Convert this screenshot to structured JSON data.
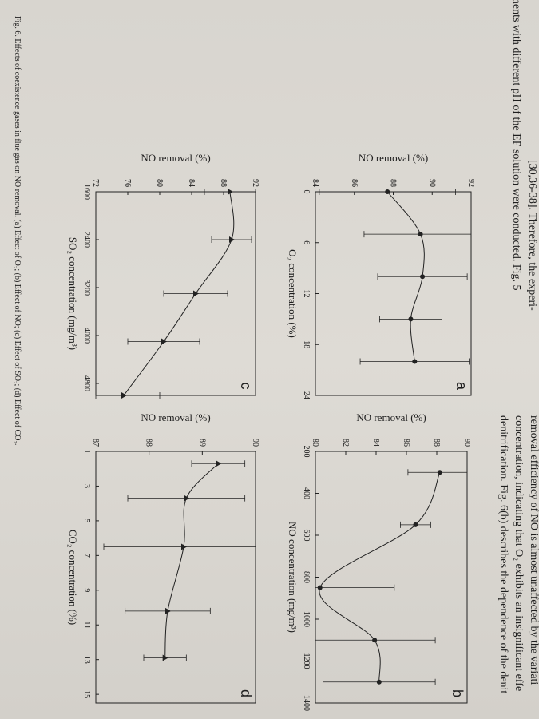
{
  "text_lines": {
    "left": [
      "[30,36-38]. Therefore, the experi-",
      "ments with different pH of the EF solution were conducted. Fig. 5"
    ],
    "right": [
      "removal efficiency of NO is almost unaffected by the variati",
      "concentration, indicating that O₂ exhibits an insignificant effe",
      "denitrification. Fig. 6(b) describes the dependence of the denit"
    ]
  },
  "chart_data": [
    {
      "type": "line",
      "panel": "a",
      "x_label": "O₂ concentration (%)",
      "y_label": "NO removal (%)",
      "marker": "circle",
      "x": [
        0,
        5,
        10,
        15,
        20
      ],
      "values": [
        87.7,
        89.4,
        89.5,
        88.9,
        89.1
      ],
      "errors": [
        3.5,
        2.9,
        2.3,
        1.6,
        2.8
      ],
      "xlim": [
        0,
        24
      ],
      "xticks": [
        0,
        6,
        12,
        18,
        24
      ],
      "ylim": [
        84,
        92
      ],
      "yticks": [
        84,
        86,
        88,
        90,
        92
      ]
    },
    {
      "type": "line",
      "panel": "b",
      "x_label": "NO concentration (mg/m³)",
      "y_label": "NO removal (%)",
      "marker": "circle",
      "x": [
        300,
        550,
        850,
        1100,
        1300
      ],
      "values": [
        88.2,
        86.6,
        80.3,
        83.9,
        84.2
      ],
      "errors": [
        2.1,
        1,
        4.9,
        4,
        3.7
      ],
      "xlim": [
        200,
        1400
      ],
      "xticks": [
        200,
        400,
        600,
        800,
        1000,
        1200,
        1400
      ],
      "ylim": [
        80,
        90
      ],
      "yticks": [
        80,
        82,
        84,
        86,
        88,
        90
      ]
    },
    {
      "type": "line",
      "panel": "c",
      "x_label": "SO₂ concentration (mg/m³)",
      "y_label": "NO removal (%)",
      "marker": "triangle",
      "x": [
        1600,
        2400,
        3300,
        4100,
        5000
      ],
      "values": [
        88.8,
        89,
        84.5,
        80.5,
        75.5
      ],
      "errors": [
        3.2,
        2.5,
        4,
        4.5,
        4.5
      ],
      "xlim": [
        1600,
        5000
      ],
      "xticks": [
        1600,
        2400,
        3200,
        4000,
        4800
      ],
      "ylim": [
        72,
        92
      ],
      "yticks": [
        72,
        76,
        80,
        84,
        88,
        92
      ]
    },
    {
      "type": "line",
      "panel": "d",
      "x_label": "CO₂ concentration (%)",
      "y_label": "NO removal (%)",
      "marker": "triangle",
      "x": [
        1.7,
        3.7,
        6.5,
        10.2,
        12.9
      ],
      "values": [
        89.3,
        88.7,
        88.65,
        88.35,
        88.3
      ],
      "errors": [
        0.5,
        1.1,
        1.5,
        0.8,
        0.4
      ],
      "xlim": [
        1,
        15.5
      ],
      "xticks": [
        1,
        3,
        5,
        7,
        9,
        11,
        13,
        15
      ],
      "ylim": [
        87,
        90
      ],
      "yticks": [
        87,
        88,
        89,
        90
      ]
    }
  ],
  "caption": "Fig. 6. Effects of coexistence gases in flue gas on NO removal. (a) Effect of O₂; (b) Effect of NO; (c) Effect of SO₂; (d) Effect of CO₂."
}
